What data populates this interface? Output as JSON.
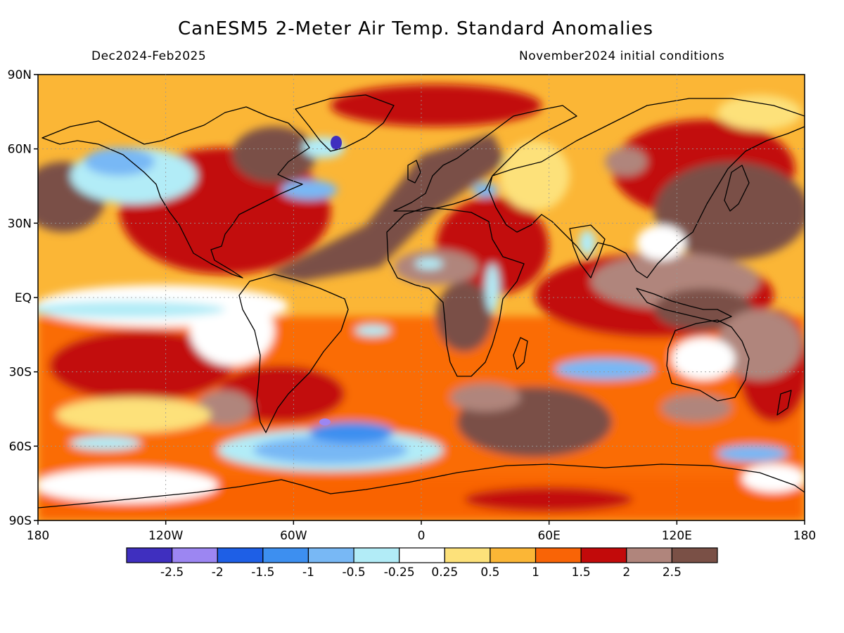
{
  "title": "CanESM5 2-Meter Air Temp. Standard Anomalies",
  "period": "Dec2024-Feb2025",
  "init": "November2024 initial conditions",
  "lat_ticks": [
    {
      "label": "90N",
      "lat": 90
    },
    {
      "label": "60N",
      "lat": 60
    },
    {
      "label": "30N",
      "lat": 30
    },
    {
      "label": "EQ",
      "lat": 0
    },
    {
      "label": "30S",
      "lat": -30
    },
    {
      "label": "60S",
      "lat": -60
    },
    {
      "label": "90S",
      "lat": -90
    }
  ],
  "lon_ticks": [
    {
      "label": "180",
      "lon": -180
    },
    {
      "label": "120W",
      "lon": -120
    },
    {
      "label": "60W",
      "lon": -60
    },
    {
      "label": "0",
      "lon": 0
    },
    {
      "label": "60E",
      "lon": 60
    },
    {
      "label": "120E",
      "lon": 120
    },
    {
      "label": "180",
      "lon": 180
    }
  ],
  "colorbar": {
    "colors": [
      "#3f2fbf",
      "#9c86f2",
      "#1e5fe6",
      "#3d8ff0",
      "#78b8f5",
      "#b2ecf7",
      "#ffffff",
      "#fde17a",
      "#fbb636",
      "#f96406",
      "#c20a0a",
      "#b0857c",
      "#7a5046"
    ],
    "labels": [
      "-2.5",
      "-2",
      "-1.5",
      "-1",
      "-0.5",
      "-0.25",
      "0.25",
      "0.5",
      "1",
      "1.5",
      "2",
      "2.5"
    ]
  }
}
